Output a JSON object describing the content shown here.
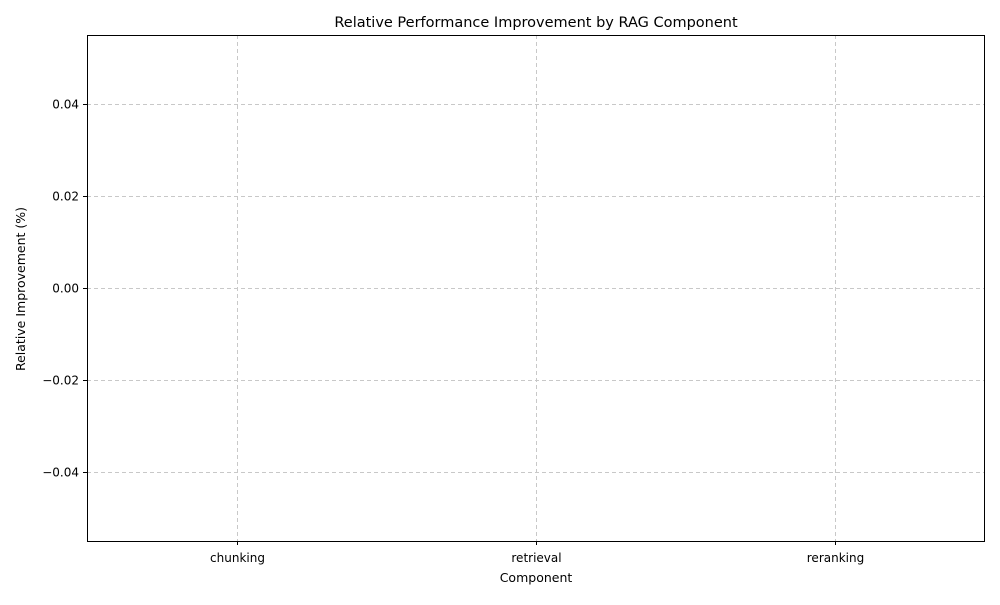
{
  "chart_data": {
    "type": "bar",
    "title": "Relative Performance Improvement by RAG Component",
    "xlabel": "Component",
    "ylabel": "Relative Improvement (%)",
    "categories": [
      "chunking",
      "retrieval",
      "reranking"
    ],
    "values": [
      0,
      0,
      0
    ],
    "ylim": [
      -0.055,
      0.055
    ],
    "yticks": [
      0.04,
      0.02,
      0.0,
      -0.02,
      -0.04
    ],
    "ytick_labels": [
      "0.04",
      "0.02",
      "0.00",
      "−0.02",
      "−0.04"
    ],
    "grid": true,
    "colors": {
      "grid": "#c8c8c8",
      "axes": "#000000",
      "bars": "#1f77b4"
    }
  }
}
